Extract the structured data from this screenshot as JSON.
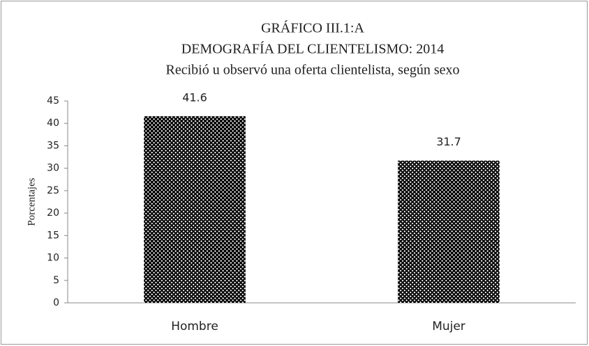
{
  "chart_data": {
    "type": "bar",
    "title": [
      "GRÁFICO III.1:A",
      "DEMOGRAFÍA  DEL CLIENTELISMO:  2014"
    ],
    "subtitle": "Recibió u observó una oferta clientelista, según sexo",
    "y_label": "Porcentajes",
    "categories": [
      "Hombre",
      "Mujer"
    ],
    "values": [
      41.6,
      31.7
    ],
    "color": "#000000",
    "ylim": [
      0,
      45
    ],
    "yticks": [
      0,
      5,
      10,
      15,
      20,
      25,
      30,
      35,
      40,
      45
    ],
    "grid": false
  }
}
